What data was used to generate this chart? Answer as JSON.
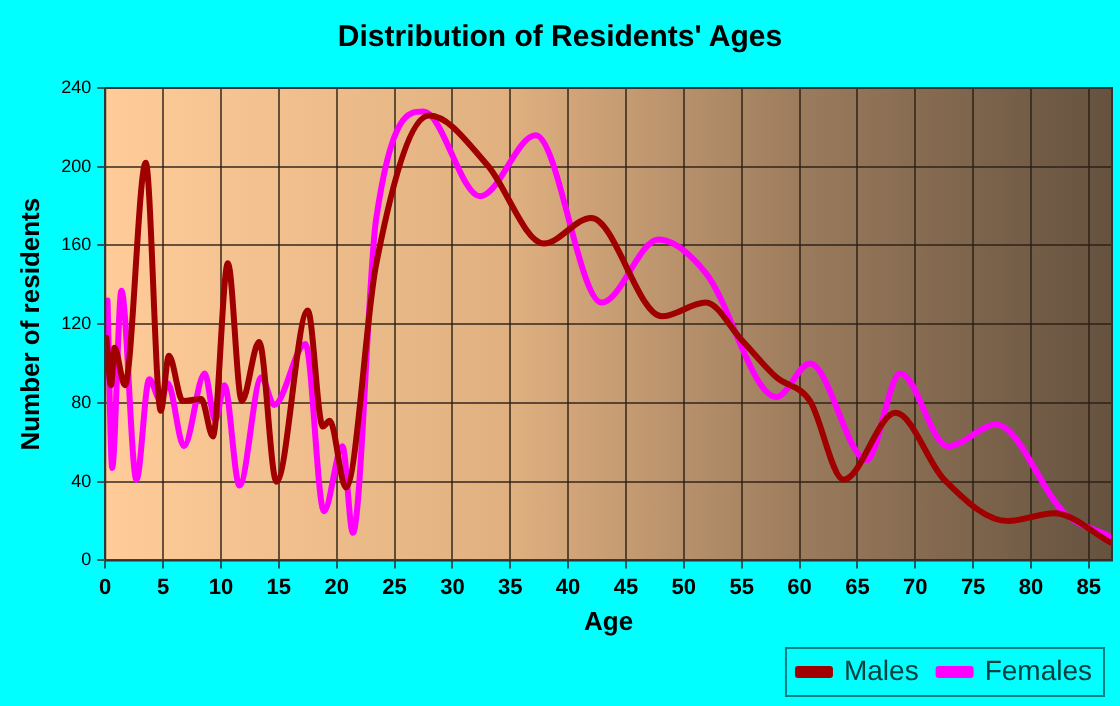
{
  "chart_data": {
    "type": "line",
    "title": "Distribution of Residents' Ages",
    "xlabel": "Age",
    "ylabel": "Number of residents",
    "xlim": [
      0,
      87
    ],
    "xticks": [
      0,
      5,
      10,
      15,
      20,
      25,
      30,
      35,
      40,
      45,
      50,
      55,
      60,
      65,
      70,
      75,
      80,
      85
    ],
    "ylim": [
      0,
      240
    ],
    "yticks": [
      0,
      40,
      80,
      120,
      160,
      200,
      240
    ],
    "grid": true,
    "legend": "bottom right",
    "marker": "none",
    "line_style": "solid",
    "series": [
      {
        "name": "Males",
        "color": "#a00000",
        "x": [
          0.1,
          0.5,
          0.8,
          1.7,
          3.5,
          4.8,
          5.5,
          6.7,
          8.3,
          9.3,
          10.6,
          11.8,
          13.3,
          14.8,
          17.5,
          18.8,
          19.4,
          20.8,
          23.4,
          28,
          33,
          37.9,
          42,
          48.1,
          51.9,
          55,
          58,
          60.9,
          63.8,
          68.3,
          72.5,
          78,
          82,
          86.9
        ],
        "values": [
          113,
          89,
          108,
          89,
          202,
          76,
          104,
          81,
          82,
          63,
          151,
          81,
          111,
          40,
          127,
          68,
          71,
          37,
          150,
          226,
          201,
          161,
          174,
          124,
          131,
          112,
          93,
          81,
          41,
          75,
          41,
          20,
          24,
          9
        ]
      },
      {
        "name": "Females",
        "color": "#ff00ff",
        "x": [
          0.2,
          0.6,
          1.4,
          2.7,
          3.8,
          4.8,
          5.4,
          6.8,
          8.6,
          9.5,
          10.3,
          11.6,
          13.5,
          14.6,
          17.3,
          18.9,
          20.5,
          21.4,
          23.4,
          27.5,
          32.4,
          37.2,
          42.9,
          47.8,
          51.9,
          58,
          60.9,
          65.8,
          68.7,
          72.8,
          77,
          82.9,
          86.9
        ],
        "values": [
          132,
          47,
          137,
          41,
          92,
          81,
          90,
          58,
          95,
          71,
          89,
          38,
          93,
          79,
          110,
          25,
          58,
          14,
          173,
          228,
          185,
          216,
          131,
          163,
          146,
          83,
          100,
          51,
          95,
          58,
          69,
          24,
          12
        ]
      }
    ]
  }
}
